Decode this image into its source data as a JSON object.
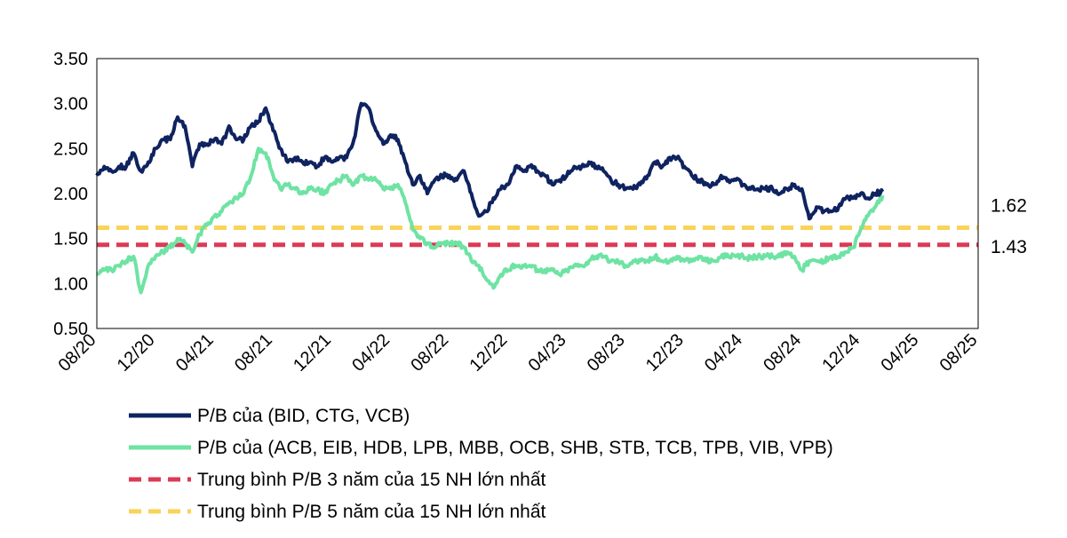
{
  "chart_data": {
    "type": "line",
    "title": "",
    "xlabel": "",
    "ylabel": "",
    "ylim": [
      0.5,
      3.5
    ],
    "yticks": [
      "3.50",
      "3.00",
      "2.50",
      "2.00",
      "1.50",
      "1.00",
      "0.50"
    ],
    "ytick_values": [
      3.5,
      3.0,
      2.5,
      2.0,
      1.5,
      1.0,
      0.5
    ],
    "xticks": [
      "08/20",
      "12/20",
      "04/21",
      "08/21",
      "12/21",
      "04/22",
      "08/22",
      "12/22",
      "04/23",
      "08/23",
      "12/23",
      "04/24",
      "08/24",
      "12/24",
      "04/25",
      "08/25"
    ],
    "x_range_months": [
      0,
      60
    ],
    "series": [
      {
        "name": "P/B của (BID, CTG, VCB)",
        "color": "#0f2360",
        "style": "solid",
        "points": [
          [
            0,
            2.2
          ],
          [
            0.5,
            2.3
          ],
          [
            1,
            2.25
          ],
          [
            1.5,
            2.3
          ],
          [
            2,
            2.3
          ],
          [
            2.5,
            2.45
          ],
          [
            3,
            2.25
          ],
          [
            3.5,
            2.35
          ],
          [
            4,
            2.5
          ],
          [
            4.5,
            2.6
          ],
          [
            5,
            2.6
          ],
          [
            5.5,
            2.85
          ],
          [
            6,
            2.75
          ],
          [
            6.5,
            2.3
          ],
          [
            7,
            2.55
          ],
          [
            7.5,
            2.55
          ],
          [
            8,
            2.6
          ],
          [
            8.5,
            2.55
          ],
          [
            9,
            2.75
          ],
          [
            9.5,
            2.6
          ],
          [
            10,
            2.6
          ],
          [
            10.5,
            2.75
          ],
          [
            11,
            2.8
          ],
          [
            11.5,
            2.95
          ],
          [
            12,
            2.7
          ],
          [
            12.5,
            2.5
          ],
          [
            13,
            2.35
          ],
          [
            13.5,
            2.4
          ],
          [
            14,
            2.35
          ],
          [
            14.5,
            2.35
          ],
          [
            15,
            2.3
          ],
          [
            15.5,
            2.4
          ],
          [
            16,
            2.35
          ],
          [
            16.5,
            2.4
          ],
          [
            17,
            2.4
          ],
          [
            17.5,
            2.6
          ],
          [
            18,
            3.0
          ],
          [
            18.5,
            2.95
          ],
          [
            19,
            2.7
          ],
          [
            19.5,
            2.55
          ],
          [
            20,
            2.65
          ],
          [
            20.5,
            2.6
          ],
          [
            21,
            2.35
          ],
          [
            21.5,
            2.1
          ],
          [
            22,
            2.2
          ],
          [
            22.5,
            2.0
          ],
          [
            23,
            2.15
          ],
          [
            23.5,
            2.2
          ],
          [
            24,
            2.2
          ],
          [
            24.5,
            2.15
          ],
          [
            25,
            2.25
          ],
          [
            25.5,
            2.0
          ],
          [
            26,
            1.75
          ],
          [
            26.5,
            1.8
          ],
          [
            27,
            1.95
          ],
          [
            27.5,
            2.05
          ],
          [
            28,
            2.1
          ],
          [
            28.5,
            2.3
          ],
          [
            29,
            2.25
          ],
          [
            29.5,
            2.3
          ],
          [
            30,
            2.25
          ],
          [
            30.5,
            2.2
          ],
          [
            31,
            2.1
          ],
          [
            31.5,
            2.15
          ],
          [
            32,
            2.2
          ],
          [
            32.5,
            2.3
          ],
          [
            33,
            2.3
          ],
          [
            33.5,
            2.35
          ],
          [
            34,
            2.3
          ],
          [
            34.5,
            2.25
          ],
          [
            35,
            2.15
          ],
          [
            35.5,
            2.1
          ],
          [
            36,
            2.05
          ],
          [
            36.5,
            2.05
          ],
          [
            37,
            2.1
          ],
          [
            37.5,
            2.2
          ],
          [
            38,
            2.35
          ],
          [
            38.5,
            2.3
          ],
          [
            39,
            2.4
          ],
          [
            39.5,
            2.4
          ],
          [
            40,
            2.3
          ],
          [
            40.5,
            2.2
          ],
          [
            41,
            2.15
          ],
          [
            41.5,
            2.1
          ],
          [
            42,
            2.1
          ],
          [
            42.5,
            2.2
          ],
          [
            43,
            2.15
          ],
          [
            43.5,
            2.15
          ],
          [
            44,
            2.1
          ],
          [
            44.5,
            2.05
          ],
          [
            45,
            2.05
          ],
          [
            45.5,
            2.05
          ],
          [
            46,
            2.05
          ],
          [
            46.5,
            2.0
          ],
          [
            47,
            2.05
          ],
          [
            47.5,
            2.1
          ],
          [
            48,
            2.05
          ],
          [
            48.5,
            1.72
          ],
          [
            49,
            1.85
          ],
          [
            49.5,
            1.8
          ],
          [
            50,
            1.8
          ],
          [
            50.5,
            1.85
          ],
          [
            51,
            1.95
          ],
          [
            51.5,
            1.95
          ],
          [
            52,
            2.0
          ],
          [
            52.5,
            1.95
          ],
          [
            53,
            2.0
          ],
          [
            53.5,
            2.02
          ]
        ]
      },
      {
        "name": "P/B của (ACB, EIB, HDB,  LPB, MBB, OCB, SHB, STB, TCB, TPB, VIB, VPB)",
        "color": "#6ee3a3",
        "style": "solid",
        "points": [
          [
            0,
            1.1
          ],
          [
            0.5,
            1.15
          ],
          [
            1,
            1.15
          ],
          [
            1.5,
            1.2
          ],
          [
            2,
            1.25
          ],
          [
            2.5,
            1.3
          ],
          [
            3,
            0.9
          ],
          [
            3.5,
            1.2
          ],
          [
            4,
            1.3
          ],
          [
            4.5,
            1.35
          ],
          [
            5,
            1.4
          ],
          [
            5.5,
            1.5
          ],
          [
            6,
            1.45
          ],
          [
            6.5,
            1.35
          ],
          [
            7,
            1.55
          ],
          [
            7.5,
            1.65
          ],
          [
            8,
            1.75
          ],
          [
            8.5,
            1.8
          ],
          [
            9,
            1.9
          ],
          [
            9.5,
            1.95
          ],
          [
            10,
            2.0
          ],
          [
            10.5,
            2.2
          ],
          [
            11,
            2.5
          ],
          [
            11.5,
            2.45
          ],
          [
            12,
            2.2
          ],
          [
            12.5,
            2.05
          ],
          [
            13,
            2.1
          ],
          [
            13.5,
            2.05
          ],
          [
            14,
            2.0
          ],
          [
            14.5,
            2.05
          ],
          [
            15,
            2.05
          ],
          [
            15.5,
            2.0
          ],
          [
            16,
            2.1
          ],
          [
            16.5,
            2.15
          ],
          [
            17,
            2.2
          ],
          [
            17.5,
            2.1
          ],
          [
            18,
            2.2
          ],
          [
            18.5,
            2.15
          ],
          [
            19,
            2.15
          ],
          [
            19.5,
            2.05
          ],
          [
            20,
            2.05
          ],
          [
            20.5,
            2.1
          ],
          [
            21,
            1.9
          ],
          [
            21.5,
            1.6
          ],
          [
            22,
            1.5
          ],
          [
            22.5,
            1.45
          ],
          [
            23,
            1.4
          ],
          [
            23.5,
            1.45
          ],
          [
            24,
            1.45
          ],
          [
            24.5,
            1.45
          ],
          [
            25,
            1.4
          ],
          [
            25.5,
            1.25
          ],
          [
            26,
            1.2
          ],
          [
            26.5,
            1.05
          ],
          [
            27,
            0.95
          ],
          [
            27.5,
            1.1
          ],
          [
            28,
            1.15
          ],
          [
            28.5,
            1.2
          ],
          [
            29,
            1.2
          ],
          [
            29.5,
            1.2
          ],
          [
            30,
            1.15
          ],
          [
            30.5,
            1.15
          ],
          [
            31,
            1.15
          ],
          [
            31.5,
            1.1
          ],
          [
            32,
            1.15
          ],
          [
            32.5,
            1.2
          ],
          [
            33,
            1.2
          ],
          [
            33.5,
            1.25
          ],
          [
            34,
            1.3
          ],
          [
            34.5,
            1.3
          ],
          [
            35,
            1.25
          ],
          [
            35.5,
            1.25
          ],
          [
            36,
            1.2
          ],
          [
            36.5,
            1.25
          ],
          [
            37,
            1.25
          ],
          [
            37.5,
            1.25
          ],
          [
            38,
            1.3
          ],
          [
            38.5,
            1.25
          ],
          [
            39,
            1.25
          ],
          [
            39.5,
            1.3
          ],
          [
            40,
            1.25
          ],
          [
            40.5,
            1.25
          ],
          [
            41,
            1.3
          ],
          [
            41.5,
            1.25
          ],
          [
            42,
            1.25
          ],
          [
            42.5,
            1.3
          ],
          [
            43,
            1.3
          ],
          [
            43.5,
            1.3
          ],
          [
            44,
            1.3
          ],
          [
            44.5,
            1.28
          ],
          [
            45,
            1.3
          ],
          [
            45.5,
            1.3
          ],
          [
            46,
            1.3
          ],
          [
            46.5,
            1.3
          ],
          [
            47,
            1.35
          ],
          [
            47.5,
            1.3
          ],
          [
            48,
            1.15
          ],
          [
            48.5,
            1.25
          ],
          [
            49,
            1.25
          ],
          [
            49.5,
            1.25
          ],
          [
            50,
            1.3
          ],
          [
            50.5,
            1.3
          ],
          [
            51,
            1.35
          ],
          [
            51.5,
            1.4
          ],
          [
            52,
            1.6
          ],
          [
            52.5,
            1.75
          ],
          [
            53,
            1.85
          ],
          [
            53.5,
            1.98
          ]
        ]
      },
      {
        "name": "Trung bình P/B 3 năm của 15 NH lớn nhất",
        "color": "#dc3a55",
        "style": "dashed",
        "constant": 1.43
      },
      {
        "name": "Trung bình P/B 5 năm của 15 NH lớn nhất",
        "color": "#f9d35a",
        "style": "dashed",
        "constant": 1.62
      }
    ],
    "annotations": [
      {
        "text": "1.62",
        "value": 1.62
      },
      {
        "text": "1.43",
        "value": 1.43
      }
    ],
    "legend_position": "bottom-left"
  }
}
